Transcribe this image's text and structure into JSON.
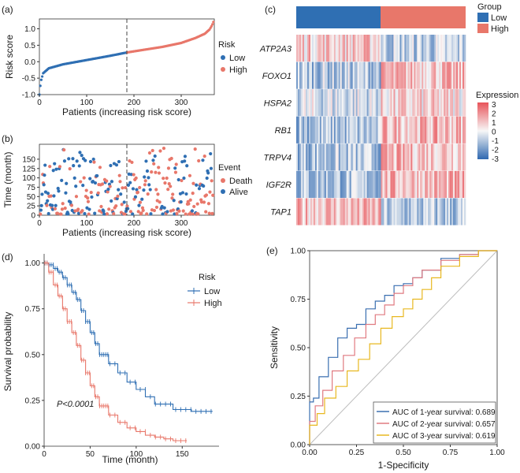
{
  "colors": {
    "low": "#2f6fb3",
    "high": "#e8776a",
    "roc1": "#3a6fb0",
    "roc2": "#e07a80",
    "roc3": "#e8b820",
    "diag": "#bdbdbd"
  },
  "chart_data": [
    {
      "id": "a",
      "type": "scatter",
      "panel_label": "(a)",
      "xlabel": "Patients (increasing risk score)",
      "ylabel": "Risk score",
      "xlim": [
        0,
        370
      ],
      "ylim": [
        -1.0,
        1.3
      ],
      "xticks": [
        "0",
        "100",
        "200",
        "300"
      ],
      "yticks": [
        "-1.0",
        "-0.5",
        "0.0",
        "0.5",
        "1.0"
      ],
      "cutoff_x": 185,
      "n_points": 370,
      "curve": {
        "x": [
          0,
          3,
          8,
          20,
          50,
          100,
          150,
          185,
          220,
          260,
          300,
          330,
          350,
          360,
          365,
          370
        ],
        "y": [
          -1.0,
          -0.6,
          -0.35,
          -0.2,
          -0.08,
          0.05,
          0.18,
          0.28,
          0.36,
          0.45,
          0.57,
          0.72,
          0.85,
          0.98,
          1.1,
          1.28
        ]
      },
      "legend": {
        "title": "Risk",
        "items": [
          "Low",
          "High"
        ],
        "position": "right"
      }
    },
    {
      "id": "b",
      "type": "scatter",
      "panel_label": "(b)",
      "xlabel": "Patients (increasing risk score)",
      "ylabel": "Time (month)",
      "xlim": [
        0,
        370
      ],
      "ylim": [
        0,
        190
      ],
      "xticks": [
        "0",
        "100",
        "200",
        "300"
      ],
      "yticks": [
        "0",
        "25",
        "50",
        "75",
        "100",
        "125",
        "150"
      ],
      "cutoff_x": 185,
      "legend": {
        "title": "Event",
        "items": [
          "Death",
          "Alive"
        ],
        "position": "right"
      }
    },
    {
      "id": "c",
      "type": "heatmap",
      "panel_label": "(c)",
      "rows": [
        "ATP2A3",
        "FOXO1",
        "HSPA2",
        "RB1",
        "TRPV4",
        "IGF2R",
        "TAP1"
      ],
      "group_split_fraction": 0.5,
      "group_legend": {
        "title": "Group",
        "items": [
          "Low",
          "High"
        ]
      },
      "color_legend": {
        "title": "Expression",
        "ticks": [
          "3",
          "2",
          "1",
          "0",
          "-1",
          "-2",
          "-3"
        ],
        "range": [
          -3,
          3
        ]
      }
    },
    {
      "id": "d",
      "type": "line",
      "panel_label": "(d)",
      "xlabel": "Time (month)",
      "ylabel": "Survival probability",
      "xlim": [
        0,
        190
      ],
      "ylim": [
        0,
        1.05
      ],
      "xticks": [
        "0",
        "50",
        "100",
        "150"
      ],
      "yticks": [
        "0.00",
        "0.25",
        "0.50",
        "0.75",
        "1.00"
      ],
      "annotation": "P<0.0001",
      "legend": {
        "title": "Risk",
        "items": [
          "Low",
          "High"
        ],
        "position": "top-right"
      },
      "series": [
        {
          "name": "Low",
          "x": [
            0,
            5,
            10,
            15,
            20,
            25,
            30,
            35,
            40,
            45,
            50,
            55,
            60,
            70,
            80,
            90,
            100,
            110,
            120,
            140,
            160,
            183
          ],
          "y": [
            1.0,
            0.99,
            0.97,
            0.95,
            0.92,
            0.88,
            0.84,
            0.8,
            0.74,
            0.68,
            0.62,
            0.56,
            0.5,
            0.45,
            0.4,
            0.35,
            0.31,
            0.27,
            0.23,
            0.2,
            0.19,
            0.19
          ]
        },
        {
          "name": "High",
          "x": [
            0,
            5,
            10,
            15,
            20,
            25,
            30,
            35,
            40,
            45,
            50,
            55,
            60,
            70,
            80,
            90,
            100,
            110,
            120,
            130,
            140,
            155
          ],
          "y": [
            1.0,
            0.95,
            0.88,
            0.82,
            0.75,
            0.68,
            0.62,
            0.55,
            0.47,
            0.4,
            0.33,
            0.27,
            0.22,
            0.17,
            0.13,
            0.1,
            0.08,
            0.06,
            0.05,
            0.04,
            0.03,
            0.03
          ]
        }
      ]
    },
    {
      "id": "e",
      "type": "line",
      "panel_label": "(e)",
      "xlabel": "1-Specificity",
      "ylabel": "Sensitivity",
      "xlim": [
        0,
        1
      ],
      "ylim": [
        0,
        1
      ],
      "xticks": [
        "0.00",
        "0.25",
        "0.50",
        "0.75",
        "1.00"
      ],
      "yticks": [
        "0.00",
        "0.25",
        "0.50",
        "0.75",
        "1.00"
      ],
      "legend": {
        "position": "bottom-right",
        "items": [
          "AUC of 1-year survival: 0.689",
          "AUC of 2-year survival: 0.657",
          "AUC of 3-year survival: 0.619"
        ]
      },
      "series": [
        {
          "name": "AUC of 1-year survival: 0.689",
          "x": [
            0,
            0.02,
            0.05,
            0.1,
            0.15,
            0.2,
            0.25,
            0.3,
            0.35,
            0.4,
            0.45,
            0.5,
            0.55,
            0.6,
            0.7,
            0.8,
            0.9,
            1.0
          ],
          "y": [
            0,
            0.22,
            0.24,
            0.35,
            0.45,
            0.55,
            0.6,
            0.62,
            0.7,
            0.74,
            0.77,
            0.82,
            0.83,
            0.86,
            0.9,
            0.96,
            0.98,
            1.0
          ]
        },
        {
          "name": "AUC of 2-year survival: 0.657",
          "x": [
            0,
            0.03,
            0.07,
            0.12,
            0.18,
            0.24,
            0.3,
            0.35,
            0.4,
            0.45,
            0.5,
            0.55,
            0.6,
            0.7,
            0.8,
            0.9,
            1.0
          ],
          "y": [
            0,
            0.12,
            0.2,
            0.28,
            0.38,
            0.46,
            0.55,
            0.62,
            0.67,
            0.72,
            0.78,
            0.82,
            0.86,
            0.9,
            0.95,
            0.98,
            1.0
          ]
        },
        {
          "name": "AUC of 3-year survival: 0.619",
          "x": [
            0,
            0.04,
            0.08,
            0.14,
            0.2,
            0.26,
            0.32,
            0.38,
            0.44,
            0.5,
            0.55,
            0.6,
            0.65,
            0.7,
            0.8,
            0.9,
            1.0
          ],
          "y": [
            0,
            0.1,
            0.16,
            0.24,
            0.3,
            0.38,
            0.44,
            0.52,
            0.6,
            0.66,
            0.7,
            0.75,
            0.8,
            0.86,
            0.92,
            0.97,
            1.0
          ]
        }
      ]
    }
  ]
}
